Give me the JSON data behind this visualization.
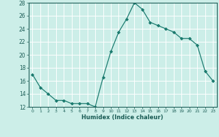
{
  "x": [
    0,
    1,
    2,
    3,
    4,
    5,
    6,
    7,
    8,
    9,
    10,
    11,
    12,
    13,
    14,
    15,
    16,
    17,
    18,
    19,
    20,
    21,
    22,
    23
  ],
  "y": [
    17,
    15,
    14,
    13,
    13,
    12.5,
    12.5,
    12.5,
    12,
    16.5,
    20.5,
    23.5,
    25.5,
    28,
    27,
    25,
    24.5,
    24,
    23.5,
    22.5,
    22.5,
    21.5,
    17.5,
    16
  ],
  "xlabel": "Humidex (Indice chaleur)",
  "ylim": [
    12,
    28
  ],
  "xlim": [
    -0.5,
    23.5
  ],
  "yticks": [
    12,
    14,
    16,
    18,
    20,
    22,
    24,
    26,
    28
  ],
  "xticks": [
    0,
    1,
    2,
    3,
    4,
    5,
    6,
    7,
    8,
    9,
    10,
    11,
    12,
    13,
    14,
    15,
    16,
    17,
    18,
    19,
    20,
    21,
    22,
    23
  ],
  "line_color": "#1a7a6e",
  "marker": "D",
  "marker_size": 2.2,
  "bg_color": "#cceee8",
  "grid_color": "#ffffff",
  "label_color": "#1a5c55",
  "tick_color": "#1a5c55"
}
